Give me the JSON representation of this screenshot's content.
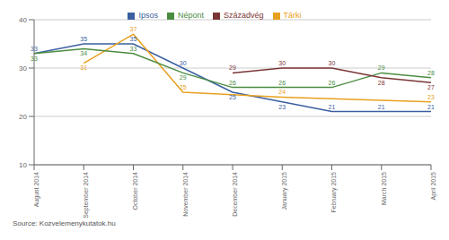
{
  "chart_data": {
    "type": "line",
    "categories": [
      "August 2014",
      "September 2014",
      "October 2014",
      "November 2014",
      "December 2014",
      "January 2015",
      "February 2015",
      "March 2015",
      "April 2015"
    ],
    "series": [
      {
        "name": "Ipsos",
        "color": "#3a5fa0",
        "values": [
          33,
          35,
          35,
          30,
          25,
          23,
          21,
          21,
          21
        ]
      },
      {
        "name": "Tárki",
        "color": "#e8a020",
        "values": [
          null,
          31,
          37,
          25,
          null,
          24,
          null,
          null,
          23
        ]
      },
      {
        "name": "Népont",
        "color": "#4a8c3f",
        "values": [
          33,
          34,
          33,
          29,
          26,
          26,
          26,
          29,
          28
        ]
      },
      {
        "name": "Századvég",
        "color": "#7b3535",
        "values": [
          null,
          null,
          null,
          null,
          29,
          30,
          30,
          28,
          27
        ]
      }
    ],
    "ylim": [
      10,
      40
    ],
    "yticks": [
      10,
      20,
      30,
      40
    ],
    "grid": true,
    "legend": "top",
    "data_labels": true,
    "annotations": [
      "Source: Kozvelemenykutatok.hu"
    ]
  }
}
